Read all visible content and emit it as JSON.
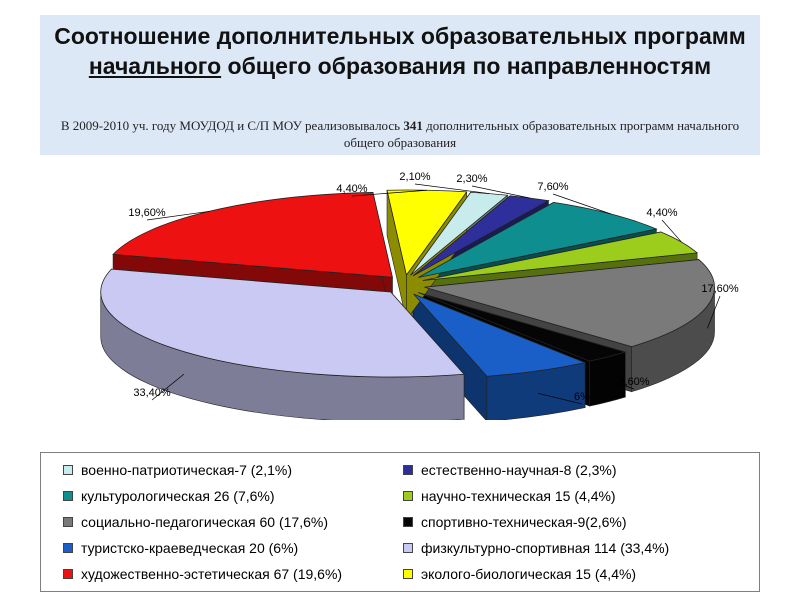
{
  "header": {
    "title_part1": "Соотношение дополнительных образовательных программ",
    "title_underlined": " начального",
    "title_part2": " общего образования по направленностям",
    "subtitle_part1": "В 2009-2010 уч. году МОУДОД и С/П МОУ реализовывалось ",
    "subtitle_count": "341",
    "subtitle_part2": " дополнительных образовательных программ начального общего образования"
  },
  "chart_data": {
    "type": "pie",
    "slices": [
      {
        "legend": "военно-патриотическая-7 (2,1%)",
        "label": "2,10%",
        "value": 2.1,
        "color": "#c8ecec"
      },
      {
        "legend": "естественно-научная-8 (2,3%)",
        "label": "2,30%",
        "value": 2.3,
        "color": "#2f2f9c"
      },
      {
        "legend": "культурологическая 26 (7,6%)",
        "label": "7,60%",
        "value": 7.6,
        "color": "#0e8e8e"
      },
      {
        "legend": "научно-техническая 15 (4,4%)",
        "label": "4,40%",
        "value": 4.4,
        "color": "#9ccc1c"
      },
      {
        "legend": "социально-педагогическая 60 (17,6%)",
        "label": "17,60%",
        "value": 17.6,
        "color": "#7a7a7a"
      },
      {
        "legend": "спортивно-техническая-9(2,6%)",
        "label": "2,60%",
        "value": 2.6,
        "color": "#050505"
      },
      {
        "legend": "туристско-краеведческая 20 (6%)",
        "label": "6%",
        "value": 6.0,
        "color": "#1a5fc7"
      },
      {
        "legend": "физкультурно-спортивная 114 (33,4%)",
        "label": "33,40%",
        "value": 33.4,
        "color": "#c9c9f3"
      },
      {
        "legend": "художественно-эстетическая 67 (19,6%)",
        "label": "19,60%",
        "value": 19.6,
        "color": "#ee1111"
      },
      {
        "legend": "эколого-биологическая 15 (4,4%)",
        "label": "4,40%",
        "value": 4.4,
        "color": "#ffff00"
      }
    ],
    "legend_placement": "bottom"
  }
}
